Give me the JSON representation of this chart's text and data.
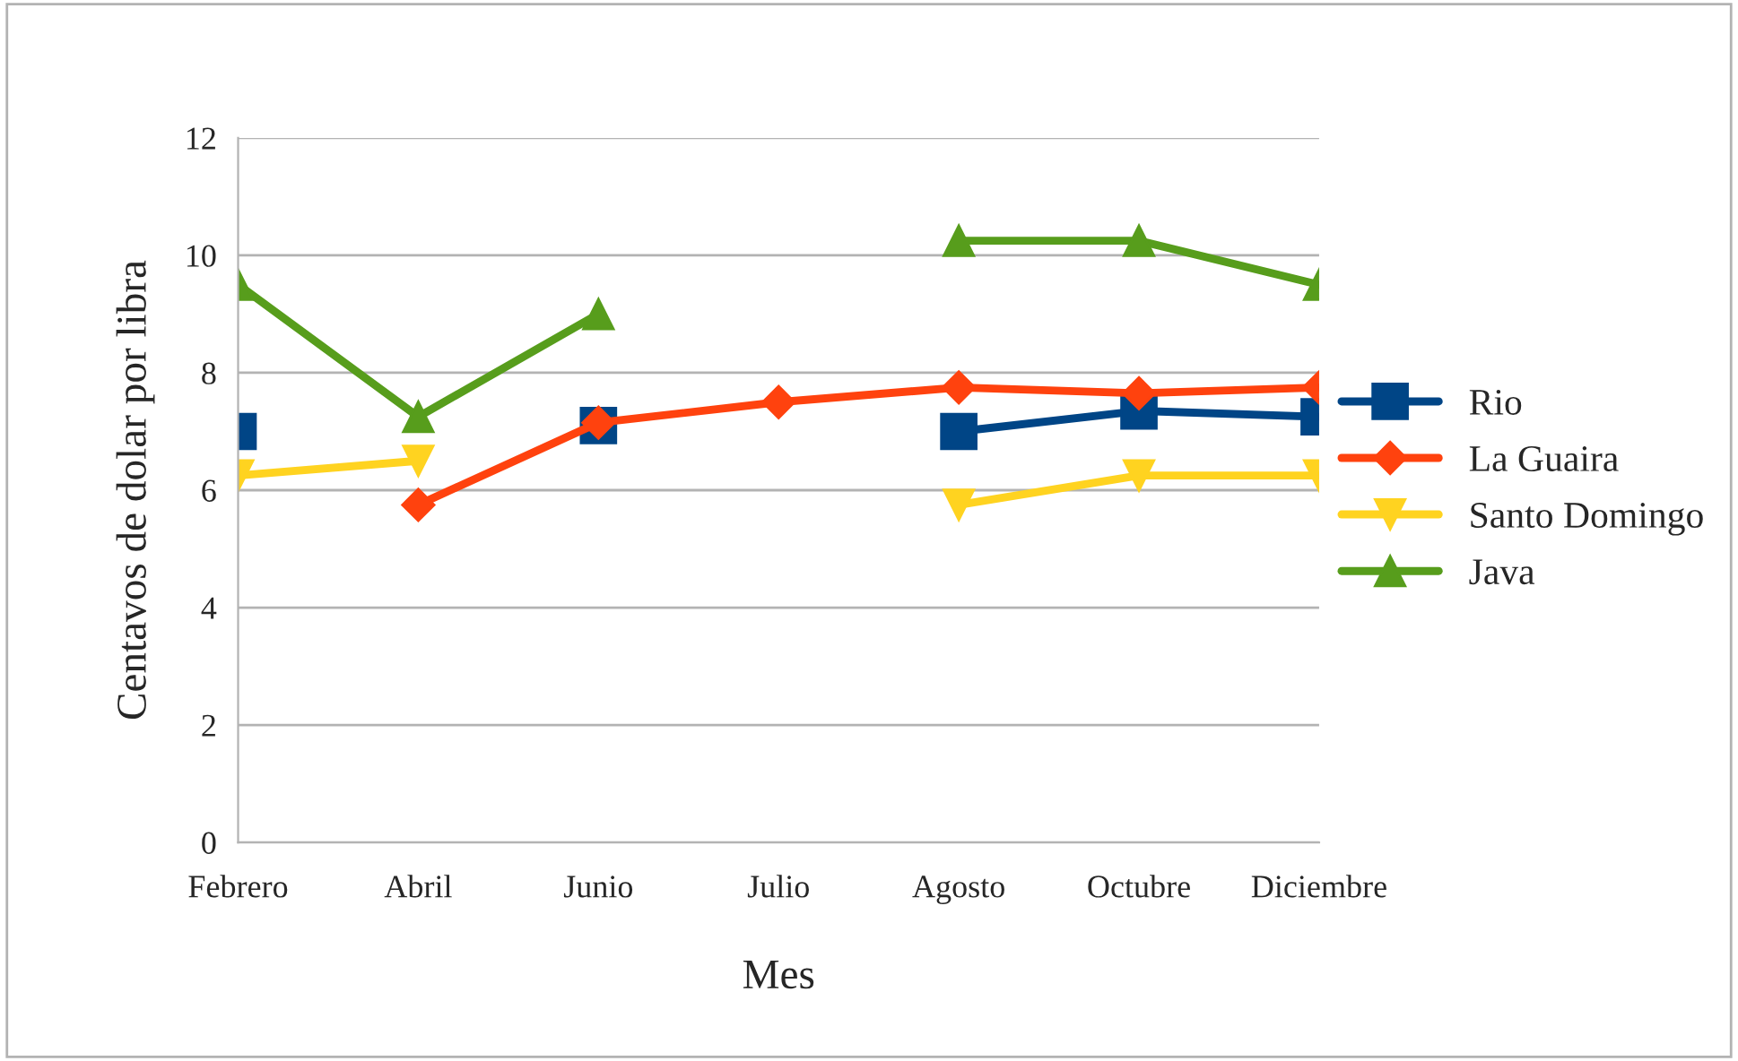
{
  "chart_data": {
    "type": "line",
    "xlabel": "Mes",
    "ylabel": "Centavos de dolar por libra",
    "categories": [
      "Febrero",
      "Abril",
      "Junio",
      "Julio",
      "Agosto",
      "Octubre",
      "Diciembre"
    ],
    "series": [
      {
        "name": "Rio",
        "color": "#004586",
        "marker": "square",
        "values": [
          7,
          null,
          7.1,
          null,
          7,
          7.35,
          7.25
        ]
      },
      {
        "name": "La Guaira",
        "color": "#ff420e",
        "marker": "diamond",
        "values": [
          null,
          5.75,
          7.15,
          7.5,
          7.75,
          7.65,
          7.75
        ]
      },
      {
        "name": "Santo Domingo",
        "color": "#ffd320",
        "marker": "triangle_down",
        "values": [
          6.25,
          6.5,
          null,
          null,
          5.75,
          6.25,
          6.25
        ]
      },
      {
        "name": "Java",
        "color": "#579d1c",
        "marker": "triangle",
        "values": [
          9.5,
          7.25,
          9,
          null,
          10.25,
          10.25,
          9.5
        ]
      }
    ],
    "ylim": [
      0,
      12
    ],
    "yticks": [
      0,
      2,
      4,
      6,
      8,
      10,
      12
    ],
    "grid": "y",
    "legend": "right",
    "line_style": "solid"
  }
}
